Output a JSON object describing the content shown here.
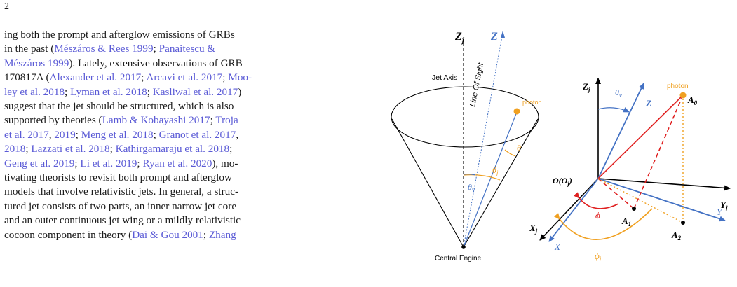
{
  "page_number": "2",
  "text_lines": [
    [
      {
        "t": "ing both the prompt and afterglow emissions of GRBs"
      }
    ],
    [
      {
        "t": "in the past ("
      },
      {
        "t": "Mészáros & Rees 1999",
        "c": 1
      },
      {
        "t": "; "
      },
      {
        "t": "Panaitescu &",
        "c": 1
      }
    ],
    [
      {
        "t": "Mészáros 1999",
        "c": 1
      },
      {
        "t": "). Lately, extensive observations of GRB"
      }
    ],
    [
      {
        "t": "170817A ("
      },
      {
        "t": "Alexander et al. 2017",
        "c": 1
      },
      {
        "t": "; "
      },
      {
        "t": "Arcavi et al. 2017",
        "c": 1
      },
      {
        "t": "; "
      },
      {
        "t": "Moo-",
        "c": 1
      }
    ],
    [
      {
        "t": "ley et al. 2018",
        "c": 1
      },
      {
        "t": "; "
      },
      {
        "t": "Lyman et al. 2018",
        "c": 1
      },
      {
        "t": "; "
      },
      {
        "t": "Kasliwal et al. 2017",
        "c": 1
      },
      {
        "t": ")"
      }
    ],
    [
      {
        "t": "suggest that the jet should be structured, which is also"
      }
    ],
    [
      {
        "t": "supported by theories ("
      },
      {
        "t": "Lamb & Kobayashi 2017",
        "c": 1
      },
      {
        "t": "; "
      },
      {
        "t": "Troja",
        "c": 1
      }
    ],
    [
      {
        "t": "et al. 2017",
        "c": 1
      },
      {
        "t": ", "
      },
      {
        "t": "2019",
        "c": 1
      },
      {
        "t": "; "
      },
      {
        "t": "Meng et al. 2018",
        "c": 1
      },
      {
        "t": "; "
      },
      {
        "t": "Granot et al. 2017",
        "c": 1
      },
      {
        "t": ","
      }
    ],
    [
      {
        "t": "2018",
        "c": 1
      },
      {
        "t": "; "
      },
      {
        "t": "Lazzati et al. 2018",
        "c": 1
      },
      {
        "t": "; "
      },
      {
        "t": "Kathirgamaraju et al. 2018",
        "c": 1
      },
      {
        "t": ";"
      }
    ],
    [
      {
        "t": "Geng et al. 2019",
        "c": 1
      },
      {
        "t": "; "
      },
      {
        "t": "Li et al. 2019",
        "c": 1
      },
      {
        "t": "; "
      },
      {
        "t": "Ryan et al. 2020",
        "c": 1
      },
      {
        "t": "), mo-"
      }
    ],
    [
      {
        "t": "tivating theorists to revisit both prompt and afterglow"
      }
    ],
    [
      {
        "t": "models that involve relativistic jets. In general, a struc-"
      }
    ],
    [
      {
        "t": "tured jet consists of two parts, an inner narrow jet core"
      }
    ],
    [
      {
        "t": "and an outer continuous jet wing or a mildly relativistic"
      }
    ],
    [
      {
        "t": "cocoon component in theory ("
      },
      {
        "t": "Dai & Gou 2001",
        "c": 1
      },
      {
        "t": "; "
      },
      {
        "t": "Zhang",
        "c": 1
      }
    ]
  ],
  "colors": {
    "text": "#1a1a1a",
    "cite": "#5b5bd6",
    "blue": "#4472c4",
    "red": "#e02020",
    "orange": "#f0a020",
    "black": "#000000"
  },
  "left_figure": {
    "zj_label": "Z",
    "zj_sub": "j",
    "z_label": "Z",
    "jet_axis_label": "Jet Axis",
    "line_of_sight_label": "Line Of Sight",
    "photon_label": "photon",
    "theta_label": "θ",
    "theta_j_label": "θ",
    "theta_j_sub": "j",
    "theta_v_label": "θ",
    "theta_v_sub": "v",
    "central_engine_label": "Central Engine"
  },
  "right_figure": {
    "zj_label": "Z",
    "zj_sub": "j",
    "z_label": "Z",
    "theta_v_label": "θ",
    "theta_v_sub": "v",
    "photon_label": "photon",
    "a0_label": "A",
    "a0_sub": "0",
    "origin_label": "O(O",
    "origin_sub": "j",
    "origin_close": ")",
    "yj_label": "Y",
    "yj_sub": "j",
    "y_label": "Y",
    "xj_label": "X",
    "xj_sub": "j",
    "x_label": "X",
    "phi_label": "ϕ",
    "phi_j_label": "ϕ",
    "phi_j_sub": "j",
    "a1_label": "A",
    "a1_sub": "1",
    "a2_label": "A",
    "a2_sub": "2"
  }
}
